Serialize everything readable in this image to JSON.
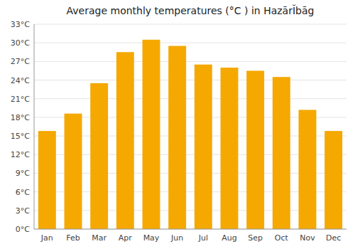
{
  "chart_data": {
    "type": "bar",
    "title": "Average monthly temperatures (°C ) in HazārĬbāg",
    "categories": [
      "Jan",
      "Feb",
      "Mar",
      "Apr",
      "May",
      "Jun",
      "Jul",
      "Aug",
      "Sep",
      "Oct",
      "Nov",
      "Dec"
    ],
    "values": [
      15.8,
      18.6,
      23.5,
      28.5,
      30.5,
      29.5,
      26.5,
      26.0,
      25.5,
      24.5,
      19.2,
      15.8
    ],
    "color": "#F5A800",
    "ylim": [
      0,
      33
    ],
    "yticks": [
      {
        "value": 0,
        "label": "0°C"
      },
      {
        "value": 3,
        "label": "3°C"
      },
      {
        "value": 6,
        "label": "6°C"
      },
      {
        "value": 9,
        "label": "9°C"
      },
      {
        "value": 12,
        "label": "12°C"
      },
      {
        "value": 15,
        "label": "15°C"
      },
      {
        "value": 18,
        "label": "18°C"
      },
      {
        "value": 21,
        "label": "21°C"
      },
      {
        "value": 24,
        "label": "24°C"
      },
      {
        "value": 27,
        "label": "27°C"
      },
      {
        "value": 30,
        "label": "30°C"
      },
      {
        "value": 33,
        "label": "33°C"
      }
    ],
    "grid": true
  }
}
